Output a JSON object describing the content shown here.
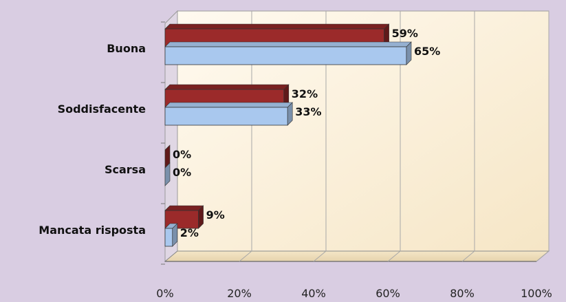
{
  "chart_data": {
    "type": "bar",
    "orientation": "horizontal",
    "categories": [
      "Buona",
      "Soddisfacente",
      "Scarsa",
      "Mancata risposta"
    ],
    "series": [
      {
        "values": [
          59,
          32,
          0,
          9
        ],
        "labels": [
          "59%",
          "32%",
          "0%",
          "9%"
        ],
        "color": "#9b2a2a"
      },
      {
        "values": [
          65,
          33,
          0,
          2
        ],
        "labels": [
          "65%",
          "33%",
          "0%",
          "2%"
        ],
        "color": "#a9c8ee"
      }
    ],
    "xlim": [
      0,
      100
    ],
    "xticks": [
      0,
      20,
      40,
      60,
      80,
      100
    ],
    "xtick_labels": [
      "0%",
      "20%",
      "40%",
      "60%",
      "80%",
      "100%"
    ],
    "grid": true,
    "legend": "none",
    "colors": {
      "background": "#d9cde2",
      "plot_area": "#fbf1dc",
      "wall_side": "#e0d7e4"
    }
  }
}
